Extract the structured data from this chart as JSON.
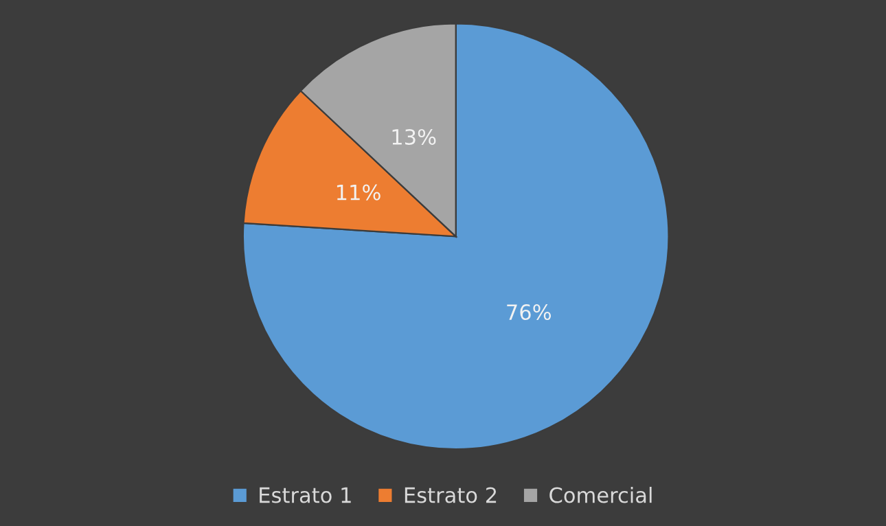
{
  "chart_data": {
    "type": "pie",
    "categories": [
      "Estrato 1",
      "Estrato 2",
      "Comercial"
    ],
    "values": [
      76,
      11,
      13
    ],
    "colors": [
      "#5b9bd5",
      "#ed7d31",
      "#a5a5a5"
    ],
    "value_labels": [
      "76%",
      "11%",
      "13%"
    ],
    "legend": "bottom"
  }
}
